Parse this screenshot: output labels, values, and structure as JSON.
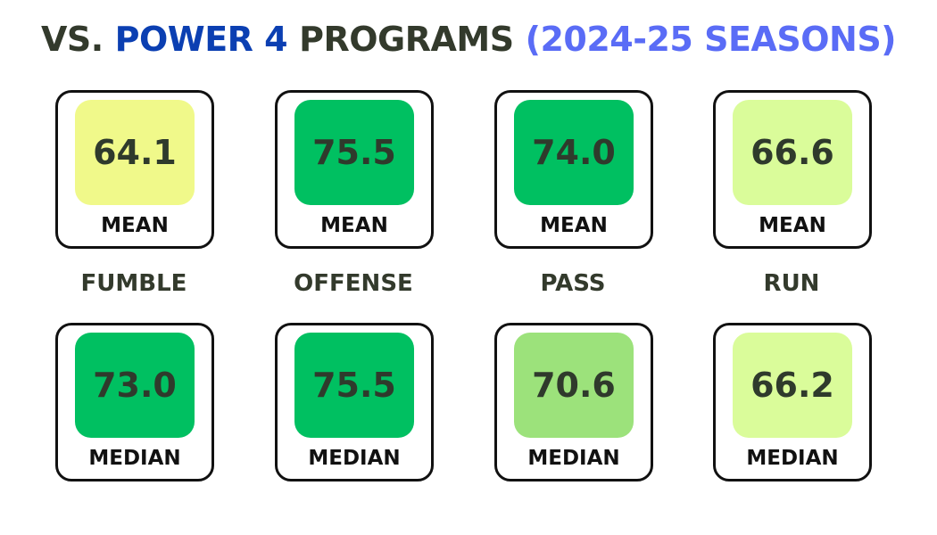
{
  "title": {
    "parts": [
      {
        "text": "VS.",
        "color": "#333a2c"
      },
      {
        "text": "POWER 4",
        "color": "#0b3fb2"
      },
      {
        "text": "PROGRAMS",
        "color": "#333a2c"
      },
      {
        "text": "(2024-25 SEASONS)",
        "color": "#5a6cf6"
      }
    ]
  },
  "columns": [
    {
      "label": "FUMBLE",
      "mean": {
        "value": "64.1",
        "label": "MEAN",
        "color": "#f0f98a"
      },
      "median": {
        "value": "73.0",
        "label": "MEDIAN",
        "color": "#00c061"
      }
    },
    {
      "label": "OFFENSE",
      "mean": {
        "value": "75.5",
        "label": "MEAN",
        "color": "#00c061"
      },
      "median": {
        "value": "75.5",
        "label": "MEDIAN",
        "color": "#00c061"
      }
    },
    {
      "label": "PASS",
      "mean": {
        "value": "74.0",
        "label": "MEAN",
        "color": "#00c061"
      },
      "median": {
        "value": "70.6",
        "label": "MEDIAN",
        "color": "#9ce27b"
      }
    },
    {
      "label": "RUN",
      "mean": {
        "value": "66.6",
        "label": "MEAN",
        "color": "#dafc9a"
      },
      "median": {
        "value": "66.2",
        "label": "MEDIAN",
        "color": "#dafc9a"
      }
    }
  ]
}
